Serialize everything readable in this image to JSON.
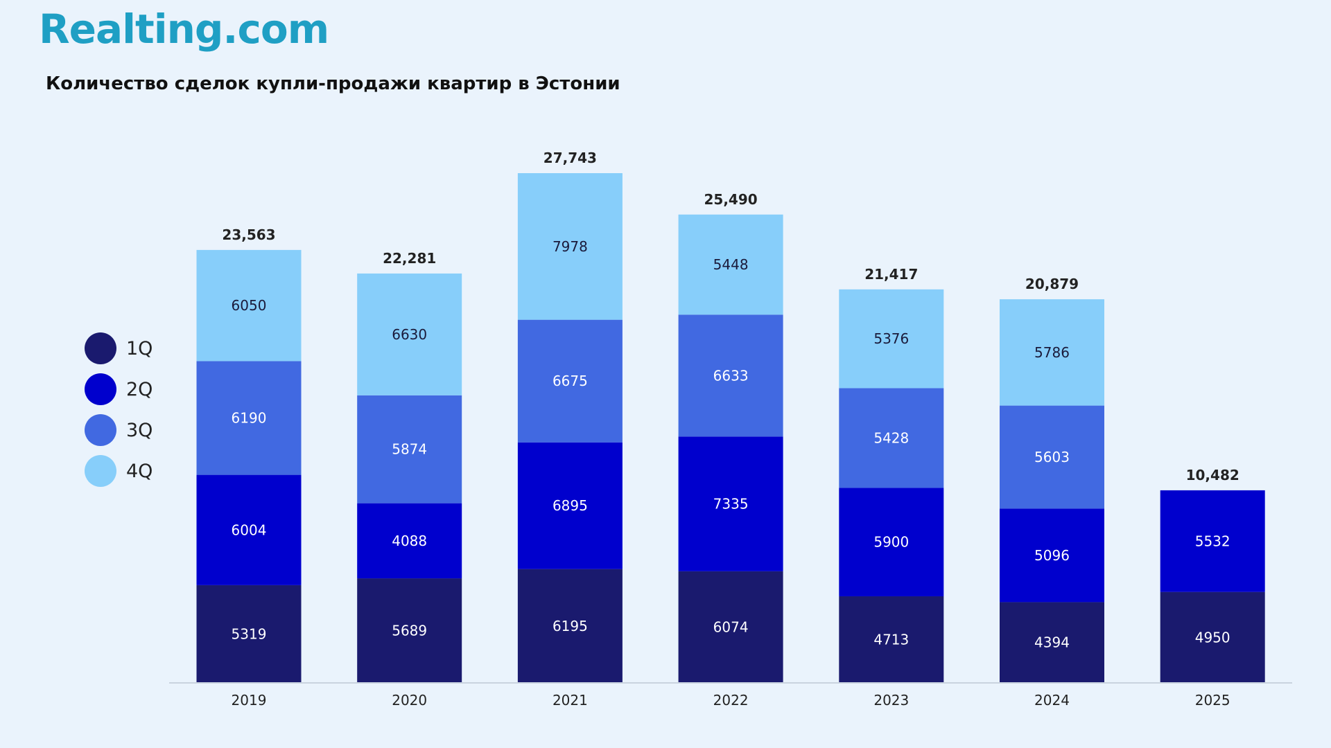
{
  "brand": {
    "logo_text": "Realting.com",
    "color": "#1f9fc4"
  },
  "title": "Количество сделок купли-продажи квартир в Эстонии",
  "legend": [
    {
      "label": "1Q",
      "color": "#1a1a6e"
    },
    {
      "label": "2Q",
      "color": "#0000cd"
    },
    {
      "label": "3Q",
      "color": "#4169e1"
    },
    {
      "label": "4Q",
      "color": "#87cefa"
    }
  ],
  "chart_data": {
    "type": "bar",
    "stacked": true,
    "title": "Количество сделок купли-продажи квартир в Эстонии",
    "xlabel": "",
    "ylabel": "",
    "categories": [
      "2019",
      "2020",
      "2021",
      "2022",
      "2023",
      "2024",
      "2025"
    ],
    "series": [
      {
        "name": "1Q",
        "color": "#1a1a6e",
        "values": [
          5319,
          5689,
          6195,
          6074,
          4713,
          4394,
          4950
        ]
      },
      {
        "name": "2Q",
        "color": "#0000cd",
        "values": [
          6004,
          4088,
          6895,
          7335,
          5900,
          5096,
          5532
        ]
      },
      {
        "name": "3Q",
        "color": "#4169e1",
        "values": [
          6190,
          5874,
          6675,
          6633,
          5428,
          5603,
          null
        ]
      },
      {
        "name": "4Q",
        "color": "#87cefa",
        "values": [
          6050,
          6630,
          7978,
          5448,
          5376,
          5786,
          null
        ]
      }
    ],
    "totals": [
      "23,563",
      "22,281",
      "27,743",
      "25,490",
      "21,417",
      "20,879",
      "10,482"
    ],
    "ylim": [
      0,
      27743
    ],
    "grid": false,
    "legend_position": "left"
  }
}
